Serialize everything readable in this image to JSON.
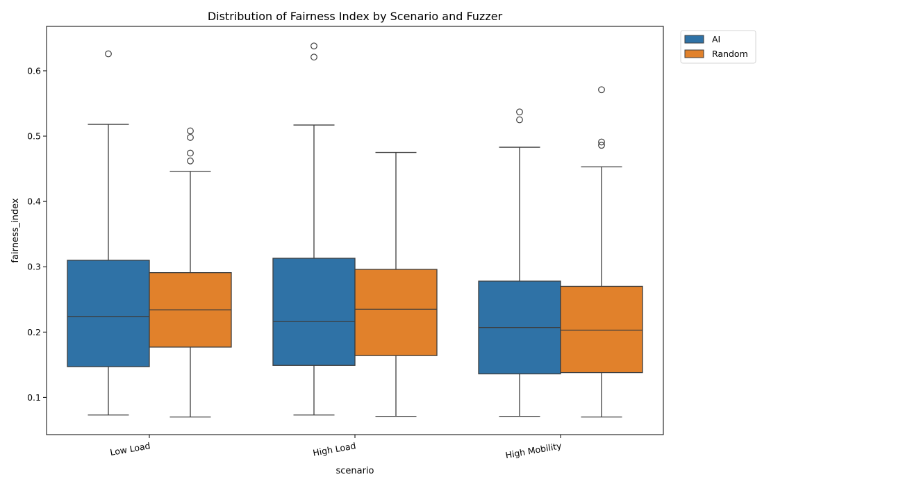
{
  "chart_data": {
    "type": "boxplot",
    "title": "Distribution of Fairness Index by Scenario and Fuzzer",
    "xlabel": "scenario",
    "ylabel": "fairness_index",
    "categories": [
      "Low Load",
      "High Load",
      "High Mobility"
    ],
    "yticks": [
      "0.1",
      "0.2",
      "0.3",
      "0.4",
      "0.5",
      "0.6"
    ],
    "ylim": [
      0.043,
      0.668
    ],
    "legend": "outside-top-right",
    "grid": false,
    "series": [
      {
        "name": "AI",
        "color": "#2f72a6",
        "boxes": [
          {
            "whislo": 0.073,
            "q1": 0.147,
            "med": 0.224,
            "q3": 0.31,
            "whishi": 0.518,
            "fliers": [
              0.626
            ]
          },
          {
            "whislo": 0.073,
            "q1": 0.149,
            "med": 0.216,
            "q3": 0.313,
            "whishi": 0.517,
            "fliers": [
              0.621,
              0.638
            ]
          },
          {
            "whislo": 0.071,
            "q1": 0.136,
            "med": 0.207,
            "q3": 0.278,
            "whishi": 0.483,
            "fliers": [
              0.525,
              0.537
            ]
          }
        ]
      },
      {
        "name": "Random",
        "color": "#e1812b",
        "boxes": [
          {
            "whislo": 0.07,
            "q1": 0.177,
            "med": 0.234,
            "q3": 0.291,
            "whishi": 0.446,
            "fliers": [
              0.462,
              0.474,
              0.498,
              0.508
            ]
          },
          {
            "whislo": 0.071,
            "q1": 0.164,
            "med": 0.235,
            "q3": 0.296,
            "whishi": 0.475,
            "fliers": []
          },
          {
            "whislo": 0.07,
            "q1": 0.138,
            "med": 0.203,
            "q3": 0.27,
            "whishi": 0.453,
            "fliers": [
              0.486,
              0.491,
              0.571
            ]
          }
        ]
      }
    ]
  }
}
